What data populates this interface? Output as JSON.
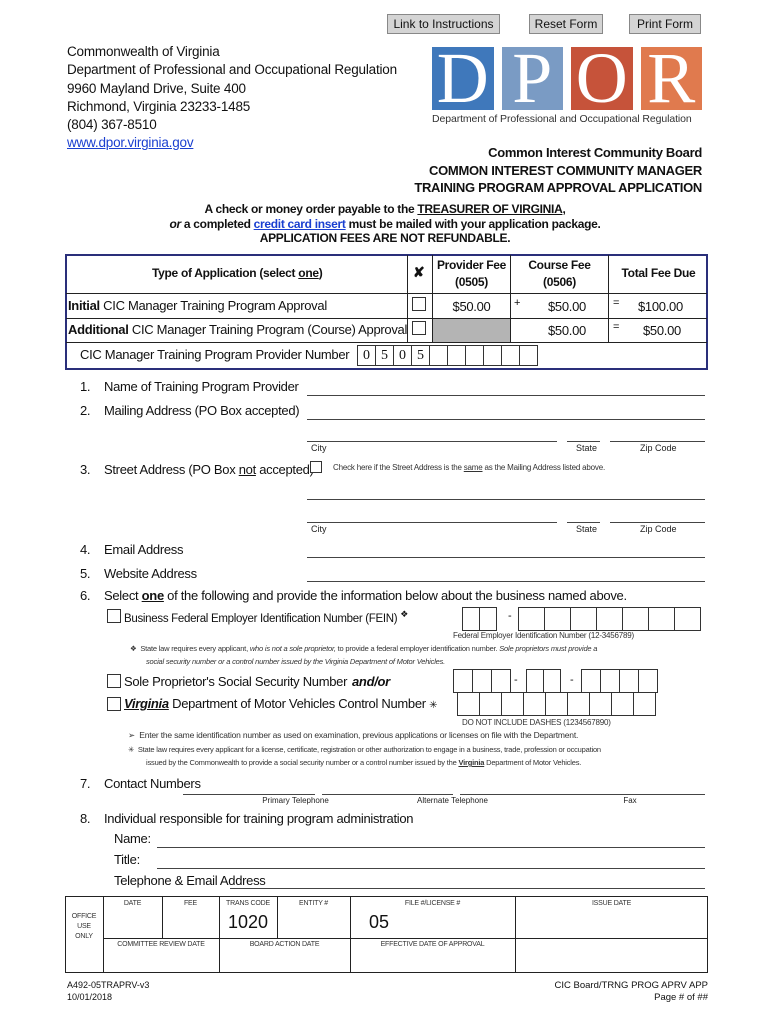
{
  "buttons": {
    "instructions": "Link to Instructions",
    "reset": "Reset Form",
    "print": "Print Form"
  },
  "agency": {
    "line1": "Commonwealth of Virginia",
    "line2": "Department of Professional and Occupational Regulation",
    "line3": "9960 Mayland Drive, Suite 400",
    "line4": "Richmond, Virginia 23233-1485",
    "line5": "(804) 367-8510",
    "website": "www.dpor.virginia.gov"
  },
  "logo": {
    "letters": [
      "D",
      "P",
      "O",
      "R"
    ],
    "colors": [
      "#3f78bb",
      "#7a9bc4",
      "#c6533a",
      "#e07a4e"
    ],
    "caption": "Department of Professional and Occupational Regulation"
  },
  "title": {
    "board": "Common Interest Community Board",
    "line1": "COMMON INTEREST COMMUNITY MANAGER",
    "line2": "TRAINING PROGRAM APPROVAL APPLICATION"
  },
  "notice": {
    "pre": "A check or money order payable to the ",
    "payee": "TREASURER OF VIRGINIA",
    "post": ",",
    "or": "or",
    "mid": " a completed ",
    "link": "credit card insert",
    "end": " must be mailed with your application package.",
    "fees": "APPLICATION FEES ARE NOT REFUNDABLE."
  },
  "fee_table": {
    "headers": {
      "type_pre": "Type of Application (select ",
      "type_u": "one",
      "type_post": ")",
      "x": "✘",
      "provider": "Provider Fee",
      "provider_code": "(0505)",
      "course": "Course Fee",
      "course_code": "(0506)",
      "total": "Total Fee Due"
    },
    "rows": [
      {
        "bold": "Initial",
        "label": " CIC Manager Training Program Approval",
        "provider": "$50.00",
        "plus": "+",
        "course": "$50.00",
        "eq": "=",
        "total": "$100.00"
      },
      {
        "bold": "Additional",
        "label": " CIC Manager Training Program (Course) Approval",
        "course": "$50.00",
        "eq": "=",
        "total": "$50.00"
      }
    ],
    "provider_number_label": "CIC Manager Training Program Provider Number",
    "provider_number": [
      "0",
      "5",
      "0",
      "5",
      "",
      "",
      "",
      "",
      "",
      ""
    ]
  },
  "items": {
    "n1": "1.",
    "i1": "Name of Training Program Provider",
    "n2": "2.",
    "i2": "Mailing Address (PO Box accepted)",
    "city": "City",
    "state": "State",
    "zip": "Zip Code",
    "n3": "3.",
    "i3_pre": "Street Address (PO Box ",
    "i3_u": "not",
    "i3_post": " accepted)",
    "same_pre": "Check here if the Street Address is the ",
    "same_u": "same",
    "same_post": " as the Mailing Address listed above.",
    "n4": "4.",
    "i4": "Email Address",
    "n5": "5.",
    "i5": "Website Address",
    "n6": "6.",
    "i6_pre": "Select ",
    "i6_u": "one",
    "i6_post": " of the following and provide the information below about the business named above.",
    "fein": "Business Federal Employer Identification Number (FEIN)",
    "fein_mark": "❖",
    "fein_caption": "Federal Employer Identification Number (12-3456789)",
    "note1_a": "State law requires every applicant, ",
    "note1_b": "who is not a sole proprietor,",
    "note1_c": " to provide a federal employer identification number.  ",
    "note1_d": "Sole proprietors must provide a",
    "note1_e": "social security number or a control number issued by the Virginia Department of Motor Vehicles.",
    "ssn": "Sole Proprietor's Social Security Number",
    "andor": "and/or",
    "dmv_va": "Virginia",
    "dmv": " Department of Motor Vehicles Control Number",
    "dmv_mark": "✳",
    "dashes": "DO NOT INCLUDE DASHES (1234567890)",
    "dash": "-",
    "bullet1": "Enter the same identification number as used on examination, previous applications or licenses on file with the Department.",
    "bullet2a": "State law requires every applicant for a license, certificate, registration or other authorization to engage in a business, trade, profession or occupation",
    "bullet2b": "issued  by the Commonwealth to provide a social security number or a control number issued by the ",
    "bullet2va": "Virginia",
    "bullet2c": " Department of Motor Vehicles.",
    "n7": "7.",
    "i7": "Contact Numbers",
    "primary": "Primary Telephone",
    "alternate": "Alternate Telephone",
    "fax": "Fax",
    "n8": "8.",
    "i8": "Individual responsible for training program administration",
    "name": "Name:",
    "title": "Title:",
    "tel": "Telephone & Email Address"
  },
  "office": {
    "label1": "OFFICE",
    "label2": "USE",
    "label3": "ONLY",
    "date": "DATE",
    "fee": "FEE",
    "trans": "TRANS CODE",
    "trans_val": "1020",
    "entity": "ENTITY #",
    "file": "FILE #/LICENSE #",
    "file_val": "05",
    "issue": "ISSUE DATE",
    "committee": "COMMITTEE REVIEW DATE",
    "board": "BOARD ACTION DATE",
    "effective": "EFFECTIVE DATE OF APPROVAL"
  },
  "footer": {
    "form": "A492-05TRAPRV-v3",
    "date": "10/01/2018",
    "name": "CIC Board/TRNG PROG APRV APP",
    "page": "Page # of ##"
  }
}
